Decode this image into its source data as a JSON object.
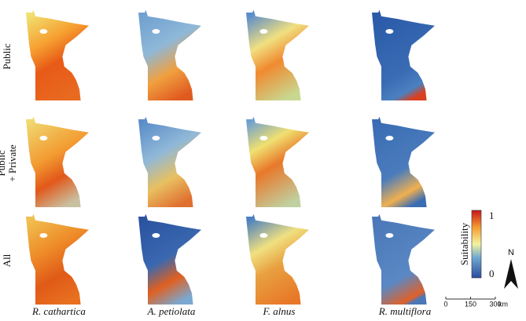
{
  "row_labels": [
    [
      "Public"
    ],
    [
      "Public",
      "+ Private"
    ],
    [
      "All"
    ]
  ],
  "column_labels": [
    "R. cathartica",
    "A. petiolata",
    "F. alnus",
    "R. multiflora"
  ],
  "colorbar": {
    "label": "Suitability",
    "ticks": [
      0,
      1
    ],
    "lim": [
      0,
      1
    ]
  },
  "north": "N",
  "scale_bar": {
    "ticks": [
      0,
      150,
      300
    ],
    "unit": "km"
  }
}
